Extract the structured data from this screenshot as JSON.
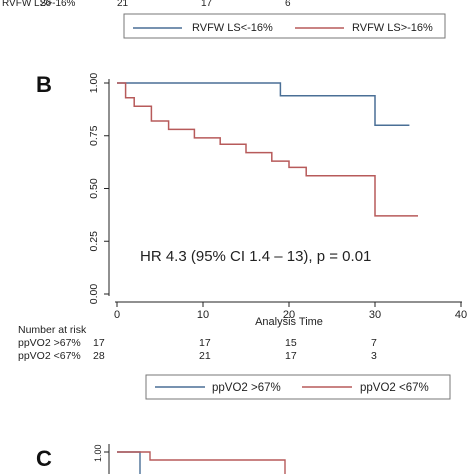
{
  "top_fragment": {
    "risk_row": {
      "label": "RVFW LS>-16%",
      "values": [
        "26",
        "21",
        "17",
        "6"
      ]
    },
    "legend": [
      {
        "name": "RVFW LS<-16%",
        "color": "#4a6f96"
      },
      {
        "name": "RVFW LS>-16%",
        "color": "#b75a5a"
      }
    ]
  },
  "panel_b": {
    "letter": "B",
    "annotation": "HR 4.3 (95% CI 1.4 – 13), p = 0.01",
    "risk_table": {
      "header": "Number at risk",
      "rows": [
        {
          "label": "ppVO2 >67%",
          "values": [
            "17",
            "17",
            "15",
            "7"
          ]
        },
        {
          "label": "ppVO2 <67%",
          "values": [
            "28",
            "21",
            "17",
            "3"
          ]
        }
      ]
    }
  },
  "panel_c": {
    "letter": "C",
    "y_tick": "1.00"
  },
  "chart_data": {
    "type": "line",
    "title": "",
    "xlabel": "Analysis Time",
    "ylabel": "",
    "xlim": [
      0,
      40
    ],
    "ylim": [
      0,
      1
    ],
    "x_ticks": [
      "0",
      "10",
      "20",
      "30",
      "40"
    ],
    "y_ticks": [
      "0.00",
      "0.25",
      "0.50",
      "0.75",
      "1.00"
    ],
    "grid": false,
    "legend_position": "bottom",
    "step": true,
    "series": [
      {
        "name": "ppVO2 >67%",
        "color": "#4a6f96",
        "points": [
          [
            0,
            1.0
          ],
          [
            19,
            1.0
          ],
          [
            19,
            0.94
          ],
          [
            30,
            0.94
          ],
          [
            30,
            0.8
          ],
          [
            34,
            0.8
          ]
        ]
      },
      {
        "name": "ppVO2 <67%",
        "color": "#b75a5a",
        "points": [
          [
            0,
            1.0
          ],
          [
            1,
            1.0
          ],
          [
            1,
            0.93
          ],
          [
            2,
            0.93
          ],
          [
            2,
            0.89
          ],
          [
            4,
            0.89
          ],
          [
            4,
            0.82
          ],
          [
            6,
            0.82
          ],
          [
            6,
            0.78
          ],
          [
            9,
            0.78
          ],
          [
            9,
            0.74
          ],
          [
            12,
            0.74
          ],
          [
            12,
            0.71
          ],
          [
            15,
            0.71
          ],
          [
            15,
            0.67
          ],
          [
            18,
            0.67
          ],
          [
            18,
            0.63
          ],
          [
            20,
            0.63
          ],
          [
            20,
            0.6
          ],
          [
            22,
            0.6
          ],
          [
            22,
            0.56
          ],
          [
            30,
            0.56
          ],
          [
            30,
            0.37
          ],
          [
            35,
            0.37
          ]
        ]
      }
    ]
  }
}
